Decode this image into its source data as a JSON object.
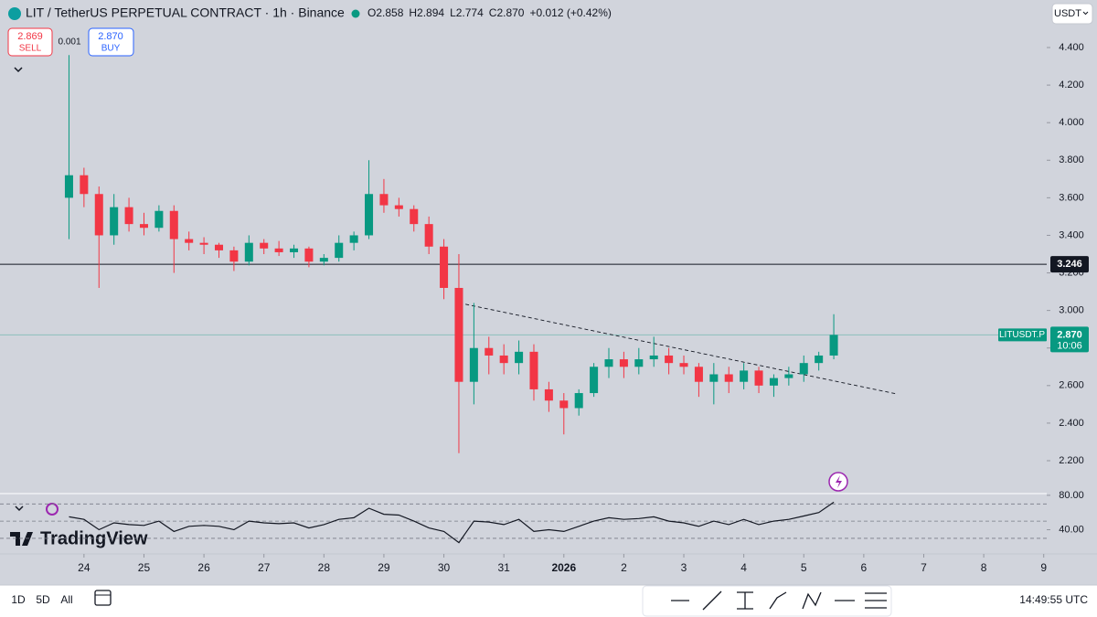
{
  "ui": {
    "symbol_title": "LIT / TetherUS PERPETUAL CONTRACT · 1h · Binance",
    "ohlc": [
      "O2.858",
      "H2.894",
      "L2.774",
      "C2.870",
      "+0.012 (+0.42%)"
    ],
    "sell_price": "2.869",
    "sell_label": "SELL",
    "spread": "0.001",
    "buy_price": "2.870",
    "buy_label": "BUY",
    "currency": "USDT",
    "logo": "TradingView",
    "ranges": [
      "1D",
      "5D",
      "All"
    ],
    "clock": "14:49:55 UTC",
    "price_tag_symbol": "LITUSDT.P",
    "price_tag_value": "2.870",
    "price_tag_countdown": "10:06",
    "hline_label": "3.246"
  },
  "chart_data": {
    "type": "candlestick",
    "x": [
      -0.25,
      0,
      0.25,
      0.5,
      0.75,
      1,
      1.25,
      1.5,
      1.75,
      2,
      2.25,
      2.5,
      2.75,
      3,
      3.25,
      3.5,
      3.75,
      4,
      4.25,
      4.5,
      4.75,
      5,
      5.25,
      5.5,
      5.75,
      6,
      6.25,
      6.5,
      6.75,
      7,
      7.25,
      7.5,
      7.75,
      8,
      8.25,
      8.5,
      8.75,
      9,
      9.25,
      9.5,
      9.75,
      10,
      10.25,
      10.5,
      10.75,
      11,
      11.25,
      11.5,
      11.75,
      12,
      12.25,
      12.5
    ],
    "open": [
      3.6,
      3.72,
      3.62,
      3.4,
      3.55,
      3.46,
      3.44,
      3.53,
      3.38,
      3.36,
      3.35,
      3.32,
      3.26,
      3.36,
      3.33,
      3.31,
      3.33,
      3.26,
      3.28,
      3.36,
      3.4,
      3.62,
      3.56,
      3.54,
      3.46,
      3.34,
      3.12,
      2.62,
      2.8,
      2.76,
      2.72,
      2.78,
      2.58,
      2.52,
      2.48,
      2.56,
      2.7,
      2.74,
      2.7,
      2.74,
      2.76,
      2.72,
      2.7,
      2.62,
      2.66,
      2.62,
      2.68,
      2.6,
      2.64,
      2.66,
      2.72,
      2.76
    ],
    "high": [
      4.36,
      3.76,
      3.66,
      3.62,
      3.6,
      3.52,
      3.56,
      3.56,
      3.42,
      3.39,
      3.36,
      3.34,
      3.4,
      3.38,
      3.37,
      3.35,
      3.34,
      3.3,
      3.4,
      3.42,
      3.8,
      3.7,
      3.6,
      3.56,
      3.5,
      3.38,
      3.3,
      3.04,
      2.86,
      2.82,
      2.84,
      2.82,
      2.62,
      2.56,
      2.58,
      2.72,
      2.8,
      2.78,
      2.8,
      2.86,
      2.8,
      2.76,
      2.72,
      2.72,
      2.7,
      2.72,
      2.7,
      2.66,
      2.7,
      2.76,
      2.78,
      2.98
    ],
    "low": [
      3.38,
      3.55,
      3.12,
      3.35,
      3.42,
      3.4,
      3.42,
      3.2,
      3.32,
      3.3,
      3.28,
      3.21,
      3.24,
      3.3,
      3.29,
      3.28,
      3.23,
      3.24,
      3.26,
      3.32,
      3.38,
      3.52,
      3.5,
      3.42,
      3.3,
      3.06,
      2.24,
      2.5,
      2.66,
      2.66,
      2.66,
      2.52,
      2.46,
      2.34,
      2.44,
      2.54,
      2.64,
      2.64,
      2.66,
      2.7,
      2.66,
      2.66,
      2.54,
      2.5,
      2.56,
      2.58,
      2.56,
      2.54,
      2.6,
      2.62,
      2.68,
      2.74
    ],
    "close": [
      3.72,
      3.62,
      3.4,
      3.55,
      3.46,
      3.44,
      3.53,
      3.38,
      3.36,
      3.35,
      3.32,
      3.26,
      3.36,
      3.33,
      3.31,
      3.33,
      3.26,
      3.28,
      3.36,
      3.4,
      3.62,
      3.56,
      3.54,
      3.46,
      3.34,
      3.12,
      2.62,
      2.8,
      2.76,
      2.72,
      2.78,
      2.58,
      2.52,
      2.48,
      2.56,
      2.7,
      2.74,
      2.7,
      2.74,
      2.76,
      2.72,
      2.7,
      2.62,
      2.66,
      2.62,
      2.68,
      2.6,
      2.64,
      2.66,
      2.72,
      2.76,
      2.87
    ],
    "up_color": "#089981",
    "down_color": "#f23645",
    "xlim": [
      -1.4,
      16.05
    ],
    "xticks": [
      {
        "value": 0,
        "label": "24"
      },
      {
        "value": 1,
        "label": "25"
      },
      {
        "value": 2,
        "label": "26"
      },
      {
        "value": 3,
        "label": "27"
      },
      {
        "value": 4,
        "label": "28"
      },
      {
        "value": 5,
        "label": "29"
      },
      {
        "value": 6,
        "label": "30"
      },
      {
        "value": 7,
        "label": "31"
      },
      {
        "value": 8,
        "label": "2026"
      },
      {
        "value": 9,
        "label": "2"
      },
      {
        "value": 10,
        "label": "3"
      },
      {
        "value": 11,
        "label": "4"
      },
      {
        "value": 12,
        "label": "5"
      },
      {
        "value": 13,
        "label": "6"
      },
      {
        "value": 14,
        "label": "7"
      },
      {
        "value": 15,
        "label": "8"
      },
      {
        "value": 16,
        "label": "9"
      }
    ],
    "ylim": [
      2.2,
      4.4
    ],
    "yticks": [
      {
        "value": 2.2,
        "label": "2.200"
      },
      {
        "value": 2.4,
        "label": "2.400"
      },
      {
        "value": 2.6,
        "label": "2.600"
      },
      {
        "value": 2.8,
        "label": "2.800"
      },
      {
        "value": 3.0,
        "label": "3.000"
      },
      {
        "value": 3.2,
        "label": "3.200"
      },
      {
        "value": 3.4,
        "label": "3.400"
      },
      {
        "value": 3.6,
        "label": "3.600"
      },
      {
        "value": 3.8,
        "label": "3.800"
      },
      {
        "value": 4.0,
        "label": "4.000"
      },
      {
        "value": 4.2,
        "label": "4.200"
      },
      {
        "value": 4.4,
        "label": "4.400"
      }
    ],
    "hline": 3.246,
    "last_price": 2.87,
    "trendline": {
      "x": [
        6.36,
        13.54
      ],
      "y": [
        3.033,
        2.556
      ]
    },
    "rsi": [
      55,
      52,
      40,
      48,
      46,
      45,
      50,
      38,
      44,
      45,
      44,
      40,
      50,
      48,
      47,
      48,
      42,
      46,
      52,
      54,
      65,
      58,
      57,
      50,
      42,
      38,
      25,
      50,
      49,
      46,
      52,
      38,
      40,
      38,
      44,
      50,
      54,
      52,
      53,
      55,
      50,
      48,
      44,
      50,
      46,
      52,
      46,
      50,
      52,
      56,
      60,
      72
    ],
    "rsi_ylim": [
      14,
      82
    ],
    "rsi_levels": [
      70,
      50,
      30
    ],
    "rsi_yticks": [
      {
        "value": 40,
        "label": "40.00"
      },
      {
        "value": 80,
        "label": "80.00"
      }
    ]
  }
}
